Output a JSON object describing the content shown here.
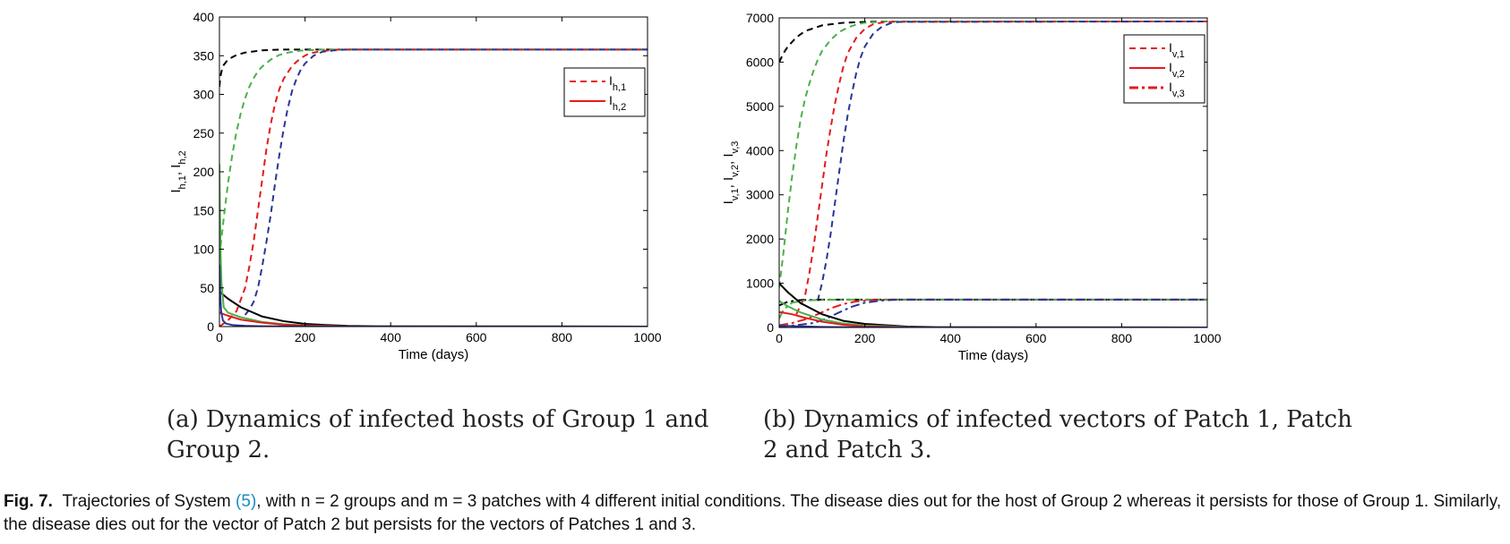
{
  "chart_data": [
    {
      "type": "line",
      "panel": "a",
      "xlabel": "Time (days)",
      "ylabel": "I_{h,1}, I_{h,2}",
      "xlim": [
        0,
        1000
      ],
      "ylim": [
        0,
        400
      ],
      "xticks": [
        "0",
        "200",
        "400",
        "600",
        "800",
        "1000"
      ],
      "yticks": [
        "0",
        "50",
        "100",
        "150",
        "200",
        "250",
        "300",
        "350",
        "400"
      ],
      "legend": {
        "position": "top-right",
        "entries": [
          {
            "main": "I",
            "sub": "h,1",
            "style": "dashed",
            "color": "#e41a1c"
          },
          {
            "main": "I",
            "sub": "h,2",
            "style": "solid",
            "color": "#e41a1c"
          }
        ]
      },
      "series": [
        {
          "color": "#000000",
          "style": "dashed",
          "x": [
            0,
            2,
            5,
            10,
            20,
            40,
            60,
            100,
            150,
            200,
            300,
            1000
          ],
          "y": [
            310,
            322,
            330,
            338,
            345,
            351,
            354,
            357,
            358,
            358,
            358,
            358
          ]
        },
        {
          "color": "#4daf4a",
          "style": "dashed",
          "x": [
            0,
            10,
            20,
            30,
            40,
            50,
            60,
            70,
            80,
            90,
            100,
            120,
            140,
            160,
            180,
            200,
            250,
            300,
            1000
          ],
          "y": [
            90,
            140,
            185,
            222,
            252,
            276,
            295,
            310,
            321,
            330,
            336,
            345,
            351,
            354,
            356,
            357,
            358,
            358,
            358
          ]
        },
        {
          "color": "#e41a1c",
          "style": "dashed",
          "x": [
            0,
            20,
            40,
            60,
            70,
            80,
            90,
            100,
            110,
            120,
            130,
            140,
            150,
            170,
            190,
            210,
            240,
            280,
            1000
          ],
          "y": [
            0,
            8,
            20,
            50,
            78,
            110,
            150,
            190,
            230,
            262,
            288,
            307,
            320,
            337,
            347,
            353,
            356,
            358,
            358
          ]
        },
        {
          "color": "#2b3596",
          "style": "dashed",
          "x": [
            60,
            70,
            80,
            90,
            100,
            110,
            120,
            130,
            140,
            150,
            160,
            170,
            180,
            190,
            200,
            220,
            240,
            270,
            300,
            1000
          ],
          "y": [
            15,
            22,
            32,
            50,
            78,
            110,
            145,
            185,
            222,
            255,
            283,
            305,
            320,
            332,
            340,
            350,
            355,
            357,
            358,
            358
          ]
        },
        {
          "color": "#000000",
          "style": "solid",
          "x": [
            0,
            20,
            50,
            100,
            150,
            200,
            250,
            300,
            400,
            1000
          ],
          "y": [
            45,
            36,
            25,
            13,
            7,
            3.5,
            2,
            1,
            0.3,
            0
          ]
        },
        {
          "color": "#4daf4a",
          "style": "solid",
          "x": [
            0,
            1,
            2,
            3,
            5,
            10,
            20,
            50,
            100,
            150,
            200,
            300,
            1000
          ],
          "y": [
            210,
            160,
            120,
            90,
            55,
            25,
            18,
            12,
            6,
            3,
            1.5,
            0.4,
            0
          ]
        },
        {
          "color": "#e41a1c",
          "style": "solid",
          "x": [
            0,
            20,
            50,
            100,
            150,
            200,
            300,
            1000
          ],
          "y": [
            18,
            14,
            9,
            5,
            2.5,
            1.2,
            0.3,
            0
          ]
        },
        {
          "color": "#2b3596",
          "style": "solid",
          "x": [
            0,
            2,
            4,
            8,
            15,
            30,
            60,
            100,
            200,
            1000
          ],
          "y": [
            80,
            40,
            20,
            8,
            4,
            2,
            1,
            0.5,
            0.1,
            0
          ]
        }
      ]
    },
    {
      "type": "line",
      "panel": "b",
      "xlabel": "Time (days)",
      "ylabel": "I_{v,1}, I_{v,2}, I_{v,3}",
      "xlim": [
        0,
        1000
      ],
      "ylim": [
        0,
        7000
      ],
      "xticks": [
        "0",
        "200",
        "400",
        "600",
        "800",
        "1000"
      ],
      "yticks": [
        "0",
        "1000",
        "2000",
        "3000",
        "4000",
        "5000",
        "6000",
        "7000"
      ],
      "legend": {
        "position": "top-right",
        "entries": [
          {
            "main": "I",
            "sub": "v,1",
            "style": "dashed",
            "color": "#e41a1c"
          },
          {
            "main": "I",
            "sub": "v,2",
            "style": "solid",
            "color": "#e41a1c"
          },
          {
            "main": "I",
            "sub": "v,3",
            "style": "dashdot",
            "color": "#e41a1c"
          }
        ]
      },
      "series": [
        {
          "color": "#000000",
          "style": "dashed",
          "x": [
            0,
            10,
            20,
            40,
            60,
            100,
            150,
            200,
            250,
            1000
          ],
          "y": [
            6000,
            6200,
            6350,
            6560,
            6700,
            6830,
            6890,
            6910,
            6920,
            6920
          ]
        },
        {
          "color": "#4daf4a",
          "style": "dashed",
          "x": [
            0,
            10,
            20,
            30,
            40,
            50,
            60,
            70,
            80,
            90,
            100,
            120,
            140,
            160,
            180,
            200,
            250,
            1000
          ],
          "y": [
            900,
            1700,
            2600,
            3400,
            4100,
            4700,
            5150,
            5500,
            5800,
            6050,
            6250,
            6500,
            6680,
            6780,
            6850,
            6890,
            6920,
            6920
          ]
        },
        {
          "color": "#e41a1c",
          "style": "dashed",
          "x": [
            40,
            60,
            70,
            80,
            90,
            100,
            110,
            120,
            130,
            140,
            150,
            160,
            180,
            200,
            220,
            250,
            1000
          ],
          "y": [
            300,
            700,
            1200,
            1800,
            2500,
            3200,
            3900,
            4500,
            5050,
            5500,
            5900,
            6200,
            6550,
            6750,
            6860,
            6910,
            6920
          ]
        },
        {
          "color": "#2b3596",
          "style": "dashed",
          "x": [
            90,
            100,
            110,
            120,
            130,
            140,
            150,
            160,
            170,
            180,
            190,
            200,
            220,
            240,
            260,
            280,
            1000
          ],
          "y": [
            600,
            1000,
            1500,
            2100,
            2800,
            3500,
            4200,
            4800,
            5300,
            5750,
            6100,
            6350,
            6650,
            6800,
            6880,
            6910,
            6920
          ]
        },
        {
          "color": "#000000",
          "style": "dashdot",
          "x": [
            0,
            20,
            50,
            100,
            150,
            200,
            1000
          ],
          "y": [
            500,
            580,
            620,
            630,
            630,
            630,
            630
          ]
        },
        {
          "color": "#4daf4a",
          "style": "dashdot",
          "x": [
            0,
            10,
            30,
            60,
            100,
            150,
            200,
            1000
          ],
          "y": [
            200,
            400,
            560,
            610,
            625,
            630,
            630,
            630
          ]
        },
        {
          "color": "#e41a1c",
          "style": "dashdot",
          "x": [
            0,
            30,
            60,
            90,
            120,
            150,
            180,
            220,
            260,
            1000
          ],
          "y": [
            50,
            100,
            180,
            300,
            430,
            530,
            590,
            620,
            630,
            630
          ]
        },
        {
          "color": "#2b3596",
          "style": "dashdot",
          "x": [
            0,
            40,
            80,
            110,
            140,
            170,
            200,
            240,
            280,
            1000
          ],
          "y": [
            20,
            50,
            100,
            200,
            340,
            470,
            560,
            610,
            630,
            630
          ]
        },
        {
          "color": "#000000",
          "style": "solid",
          "x": [
            0,
            20,
            50,
            100,
            150,
            200,
            300,
            400,
            1000
          ],
          "y": [
            1000,
            800,
            550,
            300,
            150,
            80,
            20,
            5,
            0
          ]
        },
        {
          "color": "#4daf4a",
          "style": "solid",
          "x": [
            0,
            20,
            50,
            100,
            150,
            200,
            300,
            1000
          ],
          "y": [
            600,
            480,
            340,
            180,
            90,
            45,
            10,
            0
          ]
        },
        {
          "color": "#e41a1c",
          "style": "solid",
          "x": [
            0,
            30,
            60,
            100,
            150,
            200,
            300,
            1000
          ],
          "y": [
            350,
            300,
            220,
            130,
            60,
            25,
            5,
            0
          ]
        },
        {
          "color": "#2b3596",
          "style": "solid",
          "x": [
            0,
            50,
            100,
            200,
            1000
          ],
          "y": [
            40,
            25,
            12,
            3,
            0
          ]
        }
      ]
    }
  ],
  "subcaptions": {
    "a": "(a) Dynamics of infected hosts of Group 1 and Group 2.",
    "b": "(b) Dynamics of infected vectors of Patch 1, Patch 2 and Patch 3."
  },
  "figure_caption": {
    "label": "Fig. 7.",
    "text_before": "Trajectories of System",
    "ref": "(5)",
    "text_after": ", with n = 2 groups and m = 3 patches with 4 different initial conditions. The disease dies out for the host of Group 2 whereas it persists for those of Group 1. Similarly, the disease dies out for the vector of Patch 2 but persists for the vectors of Patches 1 and 3."
  }
}
